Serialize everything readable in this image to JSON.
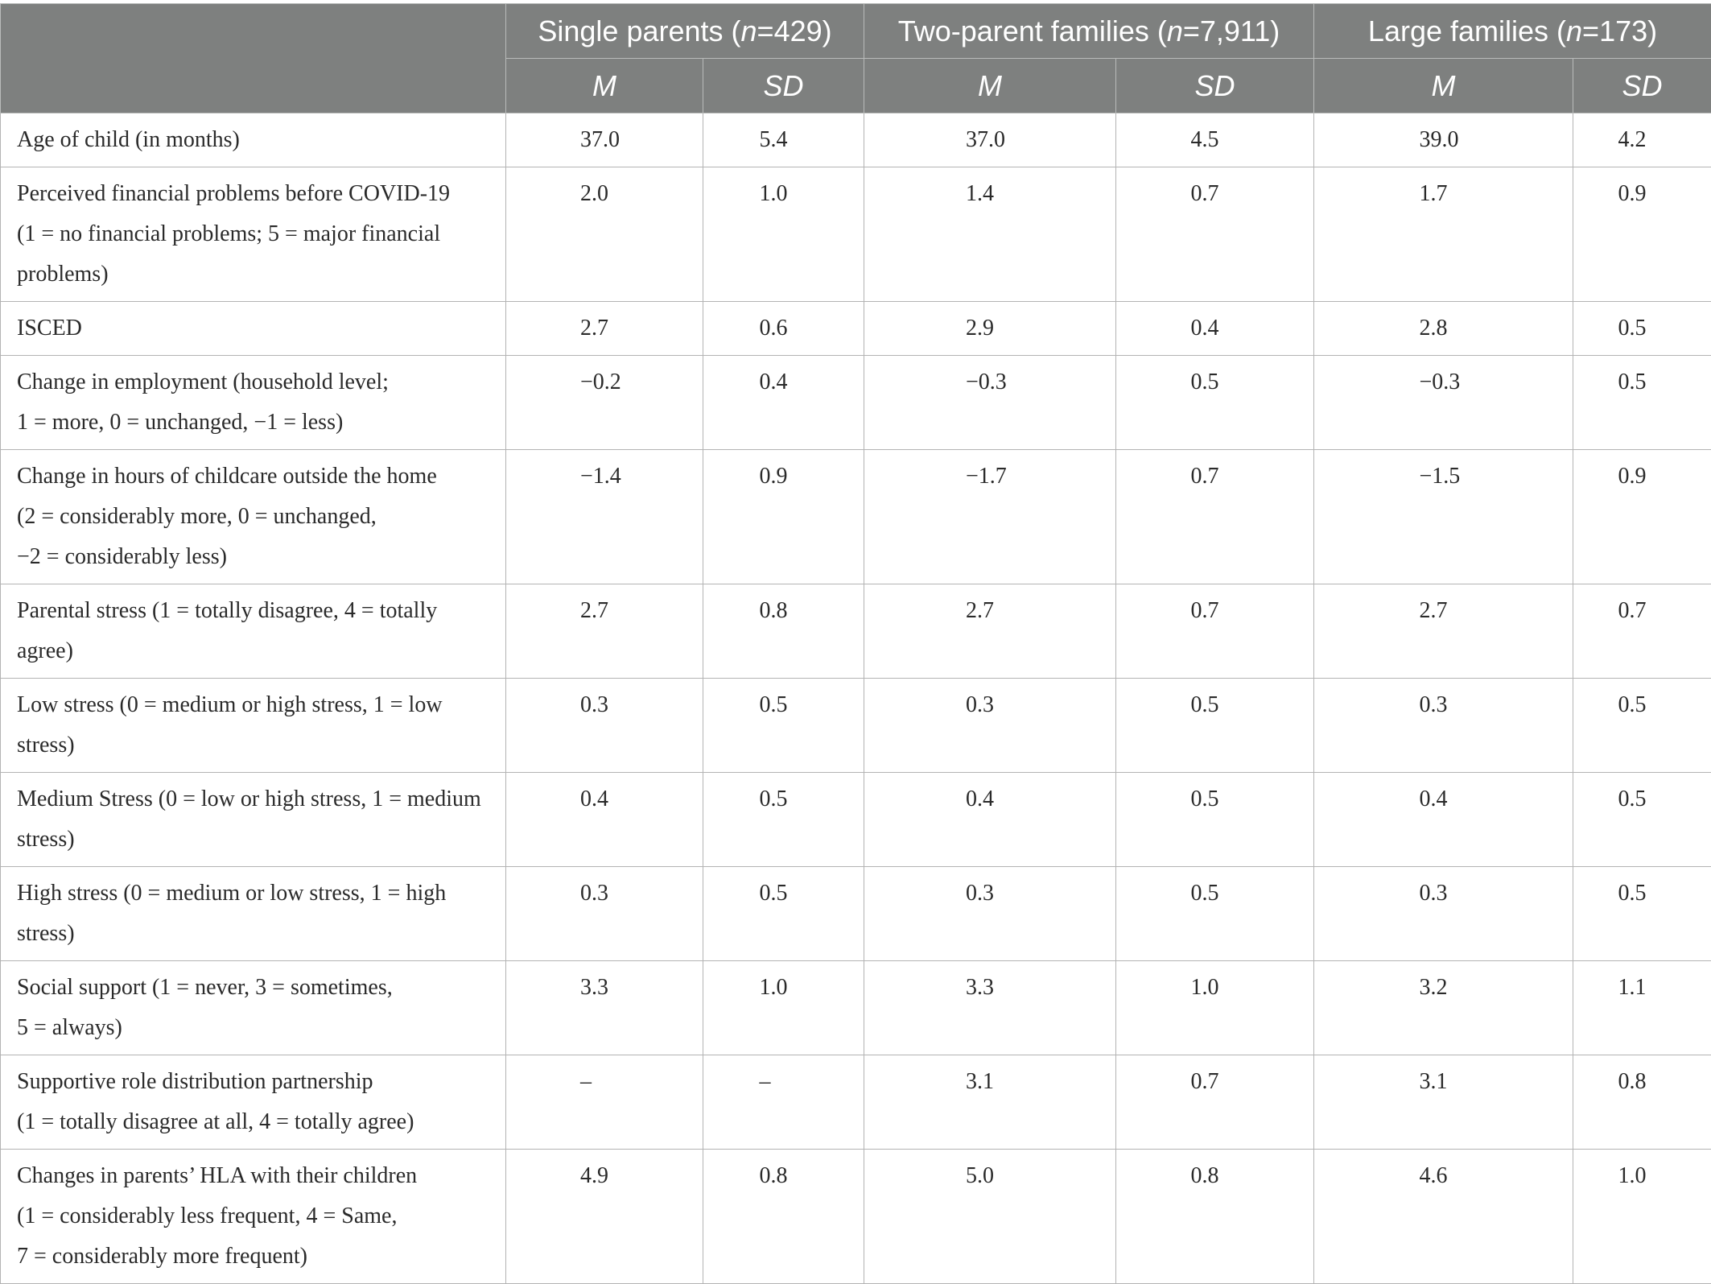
{
  "header": {
    "groups": [
      {
        "title": "Single parents (",
        "n_symbol": "n",
        "n_value": "=429)"
      },
      {
        "title": "Two-parent families (",
        "n_symbol": "n",
        "n_value": "=7,911)"
      },
      {
        "title": "Large families (",
        "n_symbol": "n",
        "n_value": "=173)"
      }
    ],
    "stats": [
      "M",
      "SD",
      "M",
      "SD",
      "M",
      "SD"
    ]
  },
  "rows": [
    {
      "label": "Age of child (in months)",
      "values": [
        "37.0",
        "5.4",
        "37.0",
        "4.5",
        "39.0",
        "4.2"
      ]
    },
    {
      "label": "Perceived financial problems before COVID-19 (1 = no financial problems; 5 = major financial problems)",
      "values": [
        "2.0",
        "1.0",
        "1.4",
        "0.7",
        "1.7",
        "0.9"
      ]
    },
    {
      "label": "ISCED",
      "values": [
        "2.7",
        "0.6",
        "2.9",
        "0.4",
        "2.8",
        "0.5"
      ]
    },
    {
      "label": "Change in employment (household level; 1 = more, 0 = unchanged, −1 = less)",
      "values": [
        "−0.2",
        "0.4",
        "−0.3",
        "0.5",
        "−0.3",
        "0.5"
      ]
    },
    {
      "label": "Change in hours of childcare outside the home (2 = considerably more, 0 = unchanged, −2 = considerably less)",
      "values": [
        "−1.4",
        "0.9",
        "−1.7",
        "0.7",
        "−1.5",
        "0.9"
      ]
    },
    {
      "label": "Parental stress (1 = totally disagree, 4 = totally agree)",
      "values": [
        "2.7",
        "0.8",
        "2.7",
        "0.7",
        "2.7",
        "0.7"
      ]
    },
    {
      "label": "Low stress (0 = medium or high stress, 1 = low stress)",
      "values": [
        "0.3",
        "0.5",
        "0.3",
        "0.5",
        "0.3",
        "0.5"
      ]
    },
    {
      "label": "Medium Stress (0 = low or high stress, 1 = medium stress)",
      "values": [
        "0.4",
        "0.5",
        "0.4",
        "0.5",
        "0.4",
        "0.5"
      ]
    },
    {
      "label": "High stress (0 = medium or low stress, 1 = high stress)",
      "values": [
        "0.3",
        "0.5",
        "0.3",
        "0.5",
        "0.3",
        "0.5"
      ]
    },
    {
      "label": "Social support (1 = never, 3 = sometimes, 5 = always)",
      "values": [
        "3.3",
        "1.0",
        "3.3",
        "1.0",
        "3.2",
        "1.1"
      ]
    },
    {
      "label": "Supportive role distribution partnership (1 = totally disagree at all, 4 = totally agree)",
      "values": [
        "–",
        "–",
        "3.1",
        "0.7",
        "3.1",
        "0.8"
      ]
    },
    {
      "label": "Changes in parents’ HLA with their children (1 = considerably less frequent, 4 = Same, 7 = considerably more frequent)",
      "values": [
        "4.9",
        "0.8",
        "5.0",
        "0.8",
        "4.6",
        "1.0"
      ]
    }
  ]
}
